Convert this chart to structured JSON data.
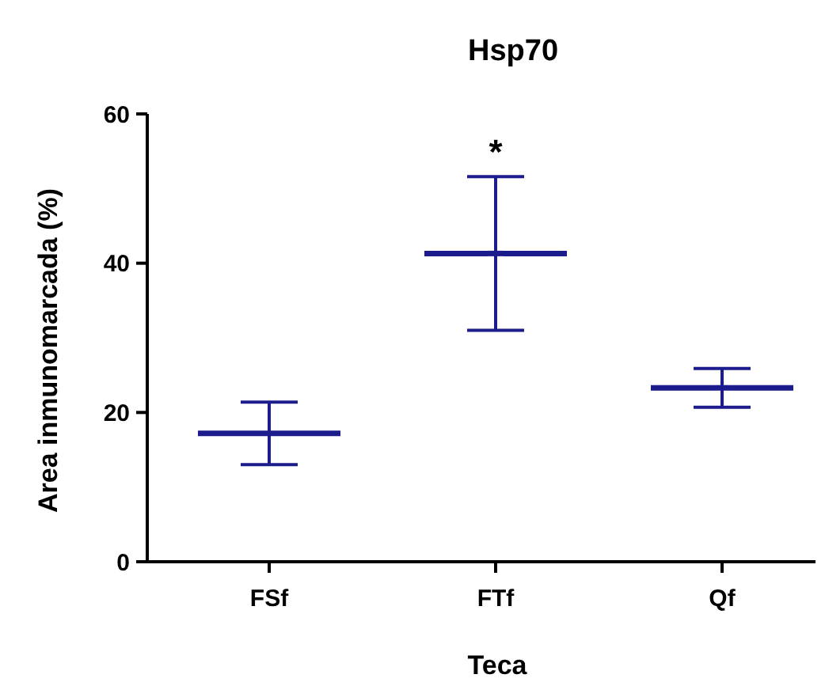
{
  "chart_data": {
    "type": "scatter",
    "title": "Hsp70",
    "xlabel": "Teca",
    "ylabel": "Area inmunomarcada (%)",
    "categories": [
      "FSf",
      "FTf",
      "Qf"
    ],
    "series": [
      {
        "color": "#1c1c8c",
        "values": [
          17.2,
          41.3,
          23.3
        ],
        "errors": [
          4.2,
          10.3,
          2.6
        ]
      }
    ],
    "ylim": [
      0,
      60
    ],
    "yticks": [
      0,
      20,
      40,
      60
    ],
    "grid": false,
    "annotations": [
      "*"
    ]
  }
}
